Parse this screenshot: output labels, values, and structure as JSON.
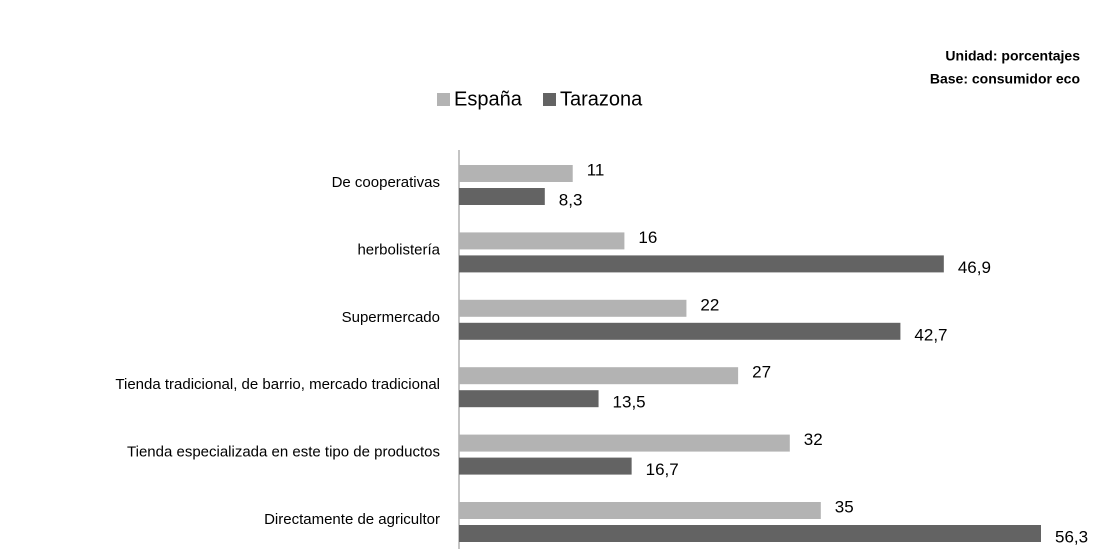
{
  "chart_data": {
    "type": "bar",
    "orientation": "horizontal",
    "annotations": [
      "Unidad: porcentajes",
      "Base: consumidor eco"
    ],
    "legend": "top",
    "categories": [
      "De cooperativas",
      "herbolistería",
      "Supermercado",
      "Tienda tradicional, de barrio, mercado tradicional",
      "Tienda especializada en este tipo de productos",
      "Directamente de agricultor"
    ],
    "series": [
      {
        "name": "España",
        "color": "#b3b3b3",
        "values": [
          11,
          16,
          22,
          27,
          32,
          35
        ]
      },
      {
        "name": "Tarazona",
        "color": "#636363",
        "values": [
          8.3,
          46.9,
          42.7,
          13.5,
          16.7,
          56.3
        ],
        "value_labels": [
          "8,3",
          "46,9",
          "42,7",
          "13,5",
          "16,7",
          "56,3"
        ]
      }
    ]
  }
}
